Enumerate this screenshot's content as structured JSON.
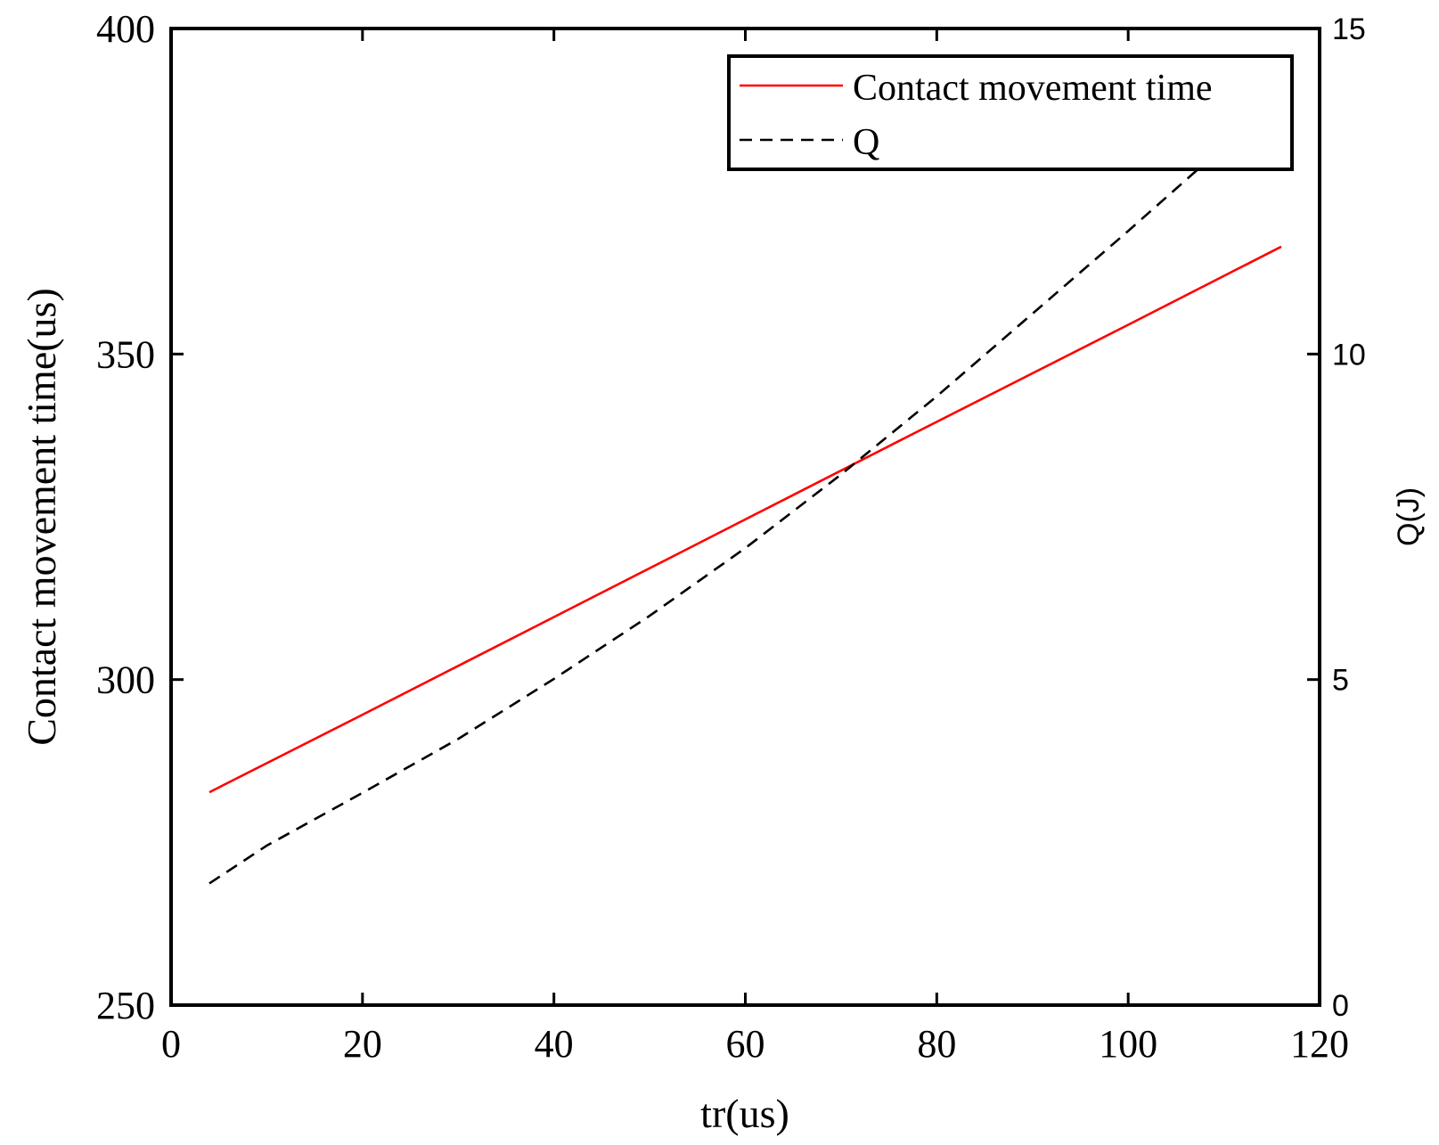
{
  "chart_data": {
    "type": "line",
    "xlabel": "tr(us)",
    "ylabel_left": "Contact movement time(us)",
    "ylabel_right": "Q(J)",
    "xlim": [
      0,
      120
    ],
    "ylim_left": [
      250,
      400
    ],
    "ylim_right": [
      0,
      15
    ],
    "x_ticks": [
      0,
      20,
      40,
      60,
      80,
      100,
      120
    ],
    "y_left_ticks": [
      250,
      300,
      350,
      400
    ],
    "y_right_ticks": [
      0,
      5,
      10,
      15
    ],
    "grid": false,
    "legend_position": "top-right",
    "series": [
      {
        "name": "Contact movement time",
        "axis": "left",
        "color": "#ff0000",
        "style": "solid",
        "x": [
          4,
          20,
          40,
          60,
          76,
          100,
          116
        ],
        "y": [
          282.7,
          294.6,
          309.6,
          324.6,
          336.6,
          354.5,
          366.5
        ]
      },
      {
        "name": "Q",
        "axis": "right",
        "color": "#000000",
        "style": "dashed",
        "x": [
          4,
          10,
          20,
          30,
          40,
          50,
          60,
          70,
          80,
          90,
          100,
          110,
          116
        ],
        "y": [
          1.87,
          2.45,
          3.26,
          4.09,
          5.01,
          5.98,
          7.02,
          8.15,
          9.35,
          10.62,
          11.89,
          13.19,
          13.87
        ]
      }
    ]
  }
}
